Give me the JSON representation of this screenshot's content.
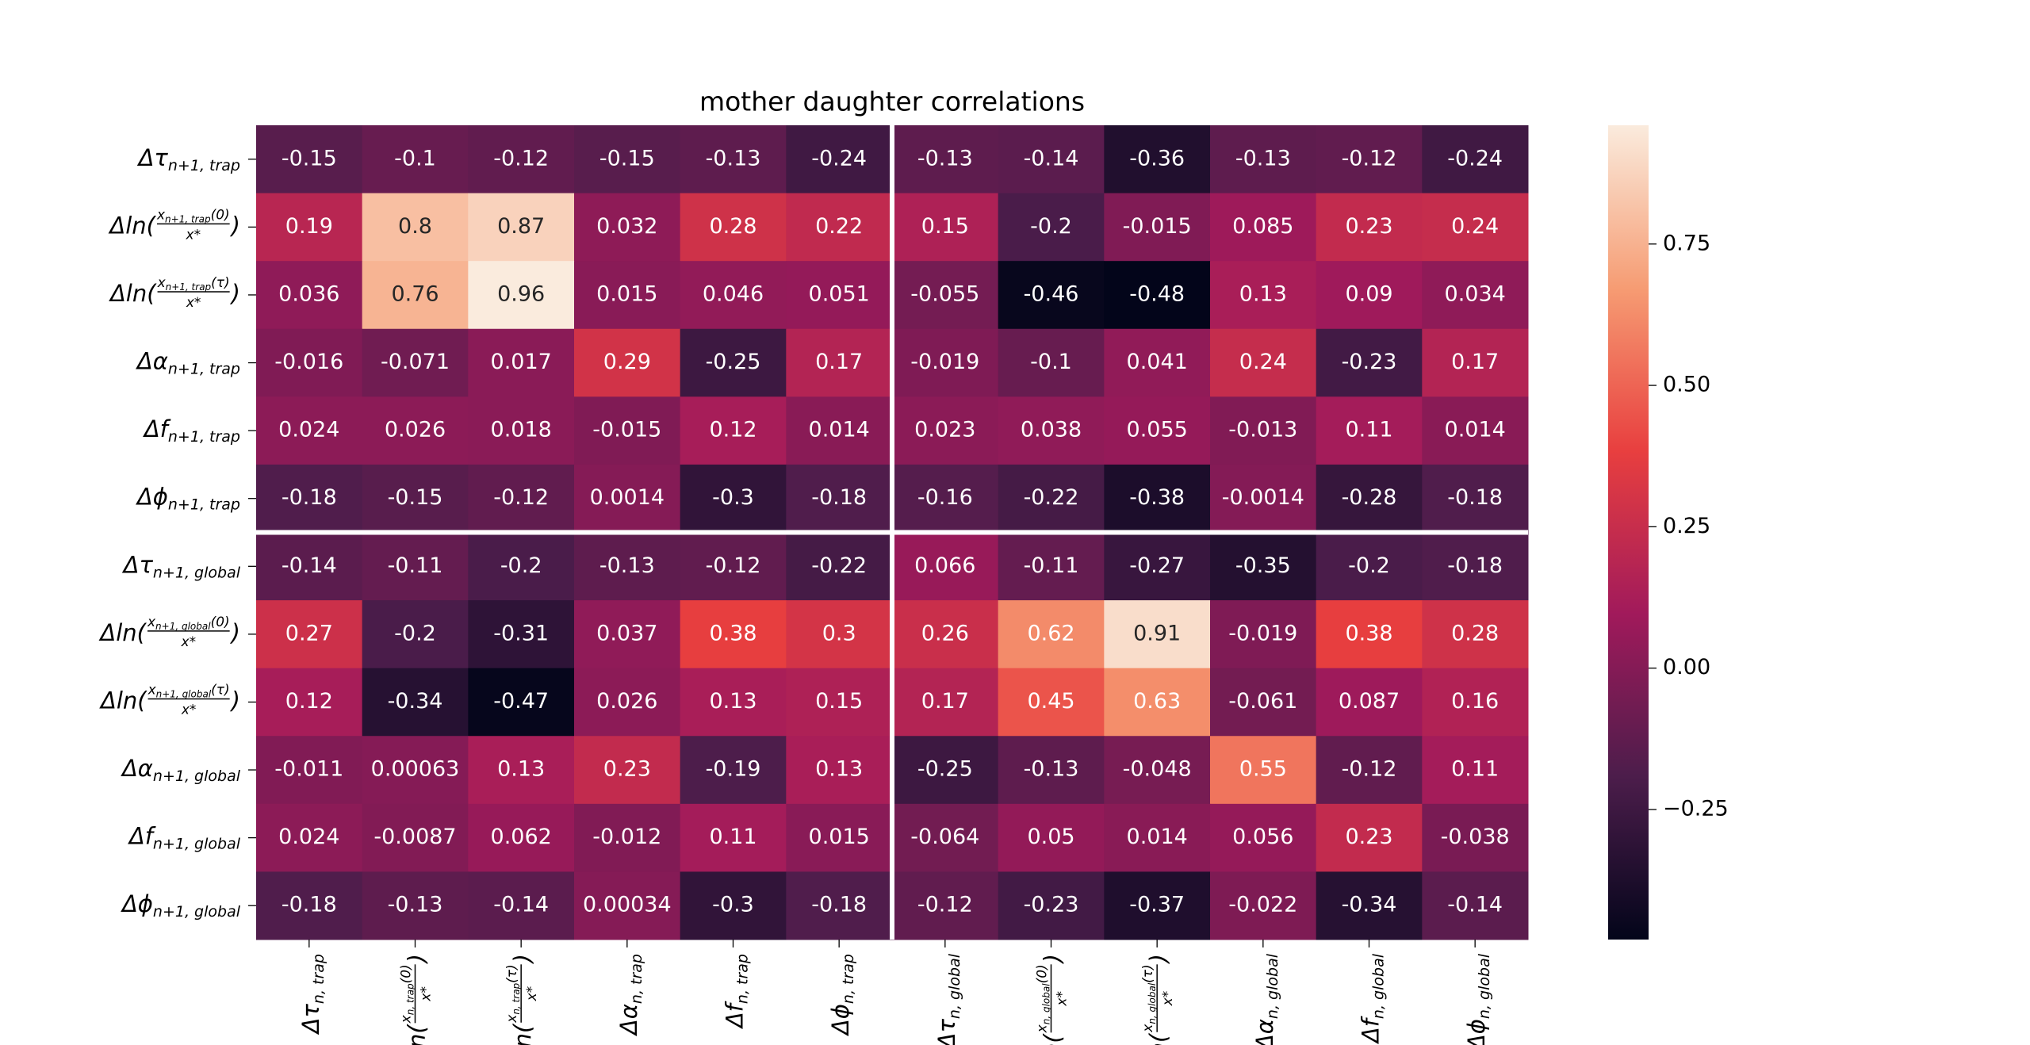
{
  "chart_data": {
    "type": "heatmap",
    "title": "mother daughter correlations",
    "rows": [
      {
        "text": "Δτ",
        "sub": "n+1, trap"
      },
      {
        "text": "Δln(",
        "num": "x",
        "num_sub": "n+1, trap",
        "num_end": "(0)",
        "den": "x*",
        "end": ")"
      },
      {
        "text": "Δln(",
        "num": "x",
        "num_sub": "n+1, trap",
        "num_end": "(τ)",
        "den": "x*",
        "end": ")"
      },
      {
        "text": "Δα",
        "sub": "n+1, trap"
      },
      {
        "text": "Δf",
        "sub": "n+1, trap"
      },
      {
        "text": "Δϕ",
        "sub": "n+1, trap"
      },
      {
        "text": "Δτ",
        "sub": "n+1, global"
      },
      {
        "text": "Δln(",
        "num": "x",
        "num_sub": "n+1, global",
        "num_end": "(0)",
        "den": "x*",
        "end": ")"
      },
      {
        "text": "Δln(",
        "num": "x",
        "num_sub": "n+1, global",
        "num_end": "(τ)",
        "den": "x*",
        "end": ")"
      },
      {
        "text": "Δα",
        "sub": "n+1, global"
      },
      {
        "text": "Δf",
        "sub": "n+1, global"
      },
      {
        "text": "Δϕ",
        "sub": "n+1, global"
      }
    ],
    "columns": [
      {
        "text": "Δτ",
        "sub": "n, trap"
      },
      {
        "text": "Δln(",
        "num": "x",
        "num_sub": "n, trap",
        "num_end": "(0)",
        "den": "x*",
        "end": ")"
      },
      {
        "text": "Δln(",
        "num": "x",
        "num_sub": "n, trap",
        "num_end": "(τ)",
        "den": "x*",
        "end": ")"
      },
      {
        "text": "Δα",
        "sub": "n, trap"
      },
      {
        "text": "Δf",
        "sub": "n, trap"
      },
      {
        "text": "Δϕ",
        "sub": "n, trap"
      },
      {
        "text": "Δτ",
        "sub": "n, global"
      },
      {
        "text": "Δln(",
        "num": "x",
        "num_sub": "n, global",
        "num_end": "(0)",
        "den": "x*",
        "end": ")"
      },
      {
        "text": "Δln(",
        "num": "x",
        "num_sub": "n, global",
        "num_end": "(τ)",
        "den": "x*",
        "end": ")"
      },
      {
        "text": "Δα",
        "sub": "n, global"
      },
      {
        "text": "Δf",
        "sub": "n, global"
      },
      {
        "text": "Δϕ",
        "sub": "n, global"
      }
    ],
    "values": [
      [
        -0.15,
        -0.1,
        -0.12,
        -0.15,
        -0.13,
        -0.24,
        -0.13,
        -0.14,
        -0.36,
        -0.13,
        -0.12,
        -0.24
      ],
      [
        0.19,
        0.8,
        0.87,
        0.032,
        0.28,
        0.22,
        0.15,
        -0.2,
        -0.015,
        0.085,
        0.23,
        0.24
      ],
      [
        0.036,
        0.76,
        0.96,
        0.015,
        0.046,
        0.051,
        -0.055,
        -0.46,
        -0.48,
        0.13,
        0.09,
        0.034
      ],
      [
        -0.016,
        -0.071,
        0.017,
        0.29,
        -0.25,
        0.17,
        -0.019,
        -0.1,
        0.041,
        0.24,
        -0.23,
        0.17
      ],
      [
        0.024,
        0.026,
        0.018,
        -0.015,
        0.12,
        0.014,
        0.023,
        0.038,
        0.055,
        -0.013,
        0.11,
        0.014
      ],
      [
        -0.18,
        -0.15,
        -0.12,
        0.0014,
        -0.3,
        -0.18,
        -0.16,
        -0.22,
        -0.38,
        -0.0014,
        -0.28,
        -0.18
      ],
      [
        -0.14,
        -0.11,
        -0.2,
        -0.13,
        -0.12,
        -0.22,
        0.066,
        -0.11,
        -0.27,
        -0.35,
        -0.2,
        -0.18
      ],
      [
        0.27,
        -0.2,
        -0.31,
        0.037,
        0.38,
        0.3,
        0.26,
        0.62,
        0.91,
        -0.019,
        0.38,
        0.28
      ],
      [
        0.12,
        -0.34,
        -0.47,
        0.026,
        0.13,
        0.15,
        0.17,
        0.45,
        0.63,
        -0.061,
        0.087,
        0.16
      ],
      [
        -0.011,
        0.00063,
        0.13,
        0.23,
        -0.19,
        0.13,
        -0.25,
        -0.13,
        -0.048,
        0.55,
        -0.12,
        0.11
      ],
      [
        0.024,
        -0.0087,
        0.062,
        -0.012,
        0.11,
        0.015,
        -0.064,
        0.05,
        0.014,
        0.056,
        0.23,
        -0.038
      ],
      [
        -0.18,
        -0.13,
        -0.14,
        0.00034,
        -0.3,
        -0.18,
        -0.12,
        -0.23,
        -0.37,
        -0.022,
        -0.34,
        -0.14
      ]
    ],
    "colormap": [
      "#03051a",
      "#4c1d4b",
      "#a11a5b",
      "#e83f3f",
      "#f69c73",
      "#faebdd"
    ],
    "clim": [
      -0.48,
      0.96
    ],
    "cticks": [
      {
        "value": -0.25,
        "label": "−0.25"
      },
      {
        "value": 0,
        "label": "0.00"
      },
      {
        "value": 0.25,
        "label": "0.25"
      },
      {
        "value": 0.5,
        "label": "0.50"
      },
      {
        "value": 0.75,
        "label": "0.75"
      }
    ]
  }
}
